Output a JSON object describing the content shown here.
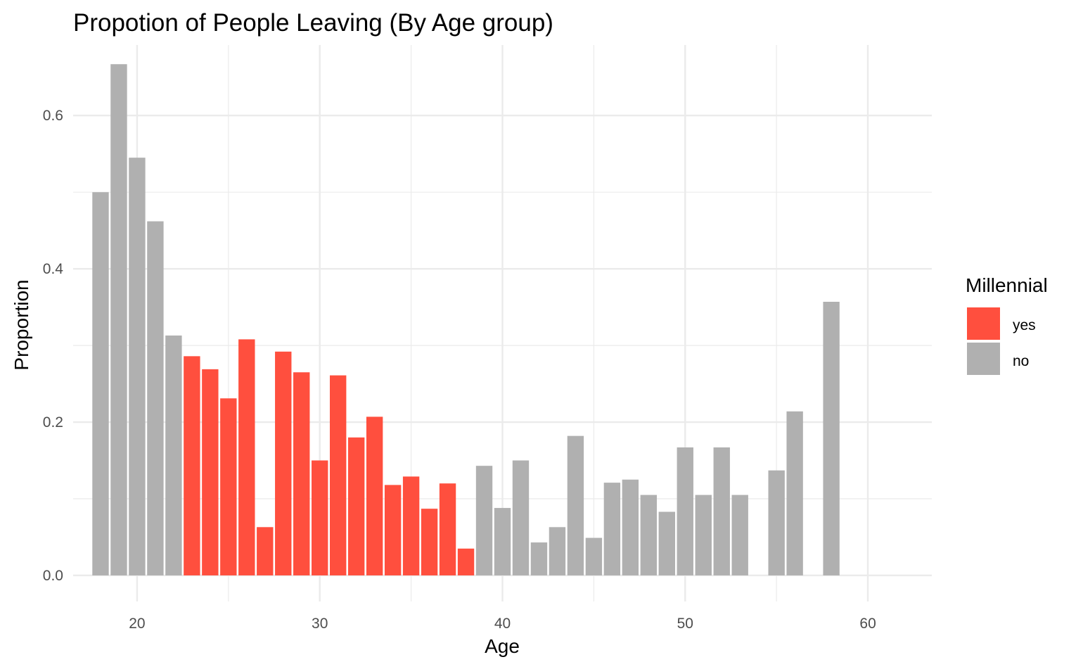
{
  "chart_data": {
    "type": "bar",
    "title": "Propotion of People Leaving (By Age group)",
    "xlabel": "Age",
    "ylabel": "Proportion",
    "xlim": [
      16.5,
      63.5
    ],
    "ylim": [
      -0.034,
      0.692
    ],
    "x_ticks": [
      "20",
      "30",
      "40",
      "50",
      "60"
    ],
    "x_tick_values": [
      20,
      30,
      40,
      50,
      60
    ],
    "y_ticks": [
      "0.0",
      "0.2",
      "0.4",
      "0.6"
    ],
    "y_tick_values": [
      0.0,
      0.2,
      0.4,
      0.6
    ],
    "grid": true,
    "legend": {
      "title": "Millennial",
      "position": "right",
      "entries": [
        {
          "label": "yes",
          "color": "#FF4F3E"
        },
        {
          "label": "no",
          "color": "#B0B0B0"
        }
      ]
    },
    "series": [
      {
        "name": "yes",
        "color": "#FF4F3E",
        "x": [
          23,
          24,
          25,
          26,
          27,
          28,
          29,
          30,
          31,
          32,
          33,
          34,
          35,
          36,
          37,
          38
        ],
        "values": [
          0.286,
          0.269,
          0.231,
          0.308,
          0.063,
          0.292,
          0.265,
          0.15,
          0.261,
          0.18,
          0.207,
          0.118,
          0.129,
          0.087,
          0.12,
          0.035
        ]
      },
      {
        "name": "no",
        "color": "#B0B0B0",
        "x": [
          18,
          19,
          20,
          21,
          22,
          39,
          40,
          41,
          42,
          43,
          44,
          45,
          46,
          47,
          48,
          49,
          50,
          51,
          52,
          53,
          55,
          56,
          58
        ],
        "values": [
          0.5,
          0.667,
          0.545,
          0.462,
          0.313,
          0.143,
          0.088,
          0.15,
          0.043,
          0.063,
          0.182,
          0.049,
          0.121,
          0.125,
          0.105,
          0.083,
          0.167,
          0.105,
          0.167,
          0.105,
          0.137,
          0.214,
          0.357
        ]
      }
    ]
  }
}
